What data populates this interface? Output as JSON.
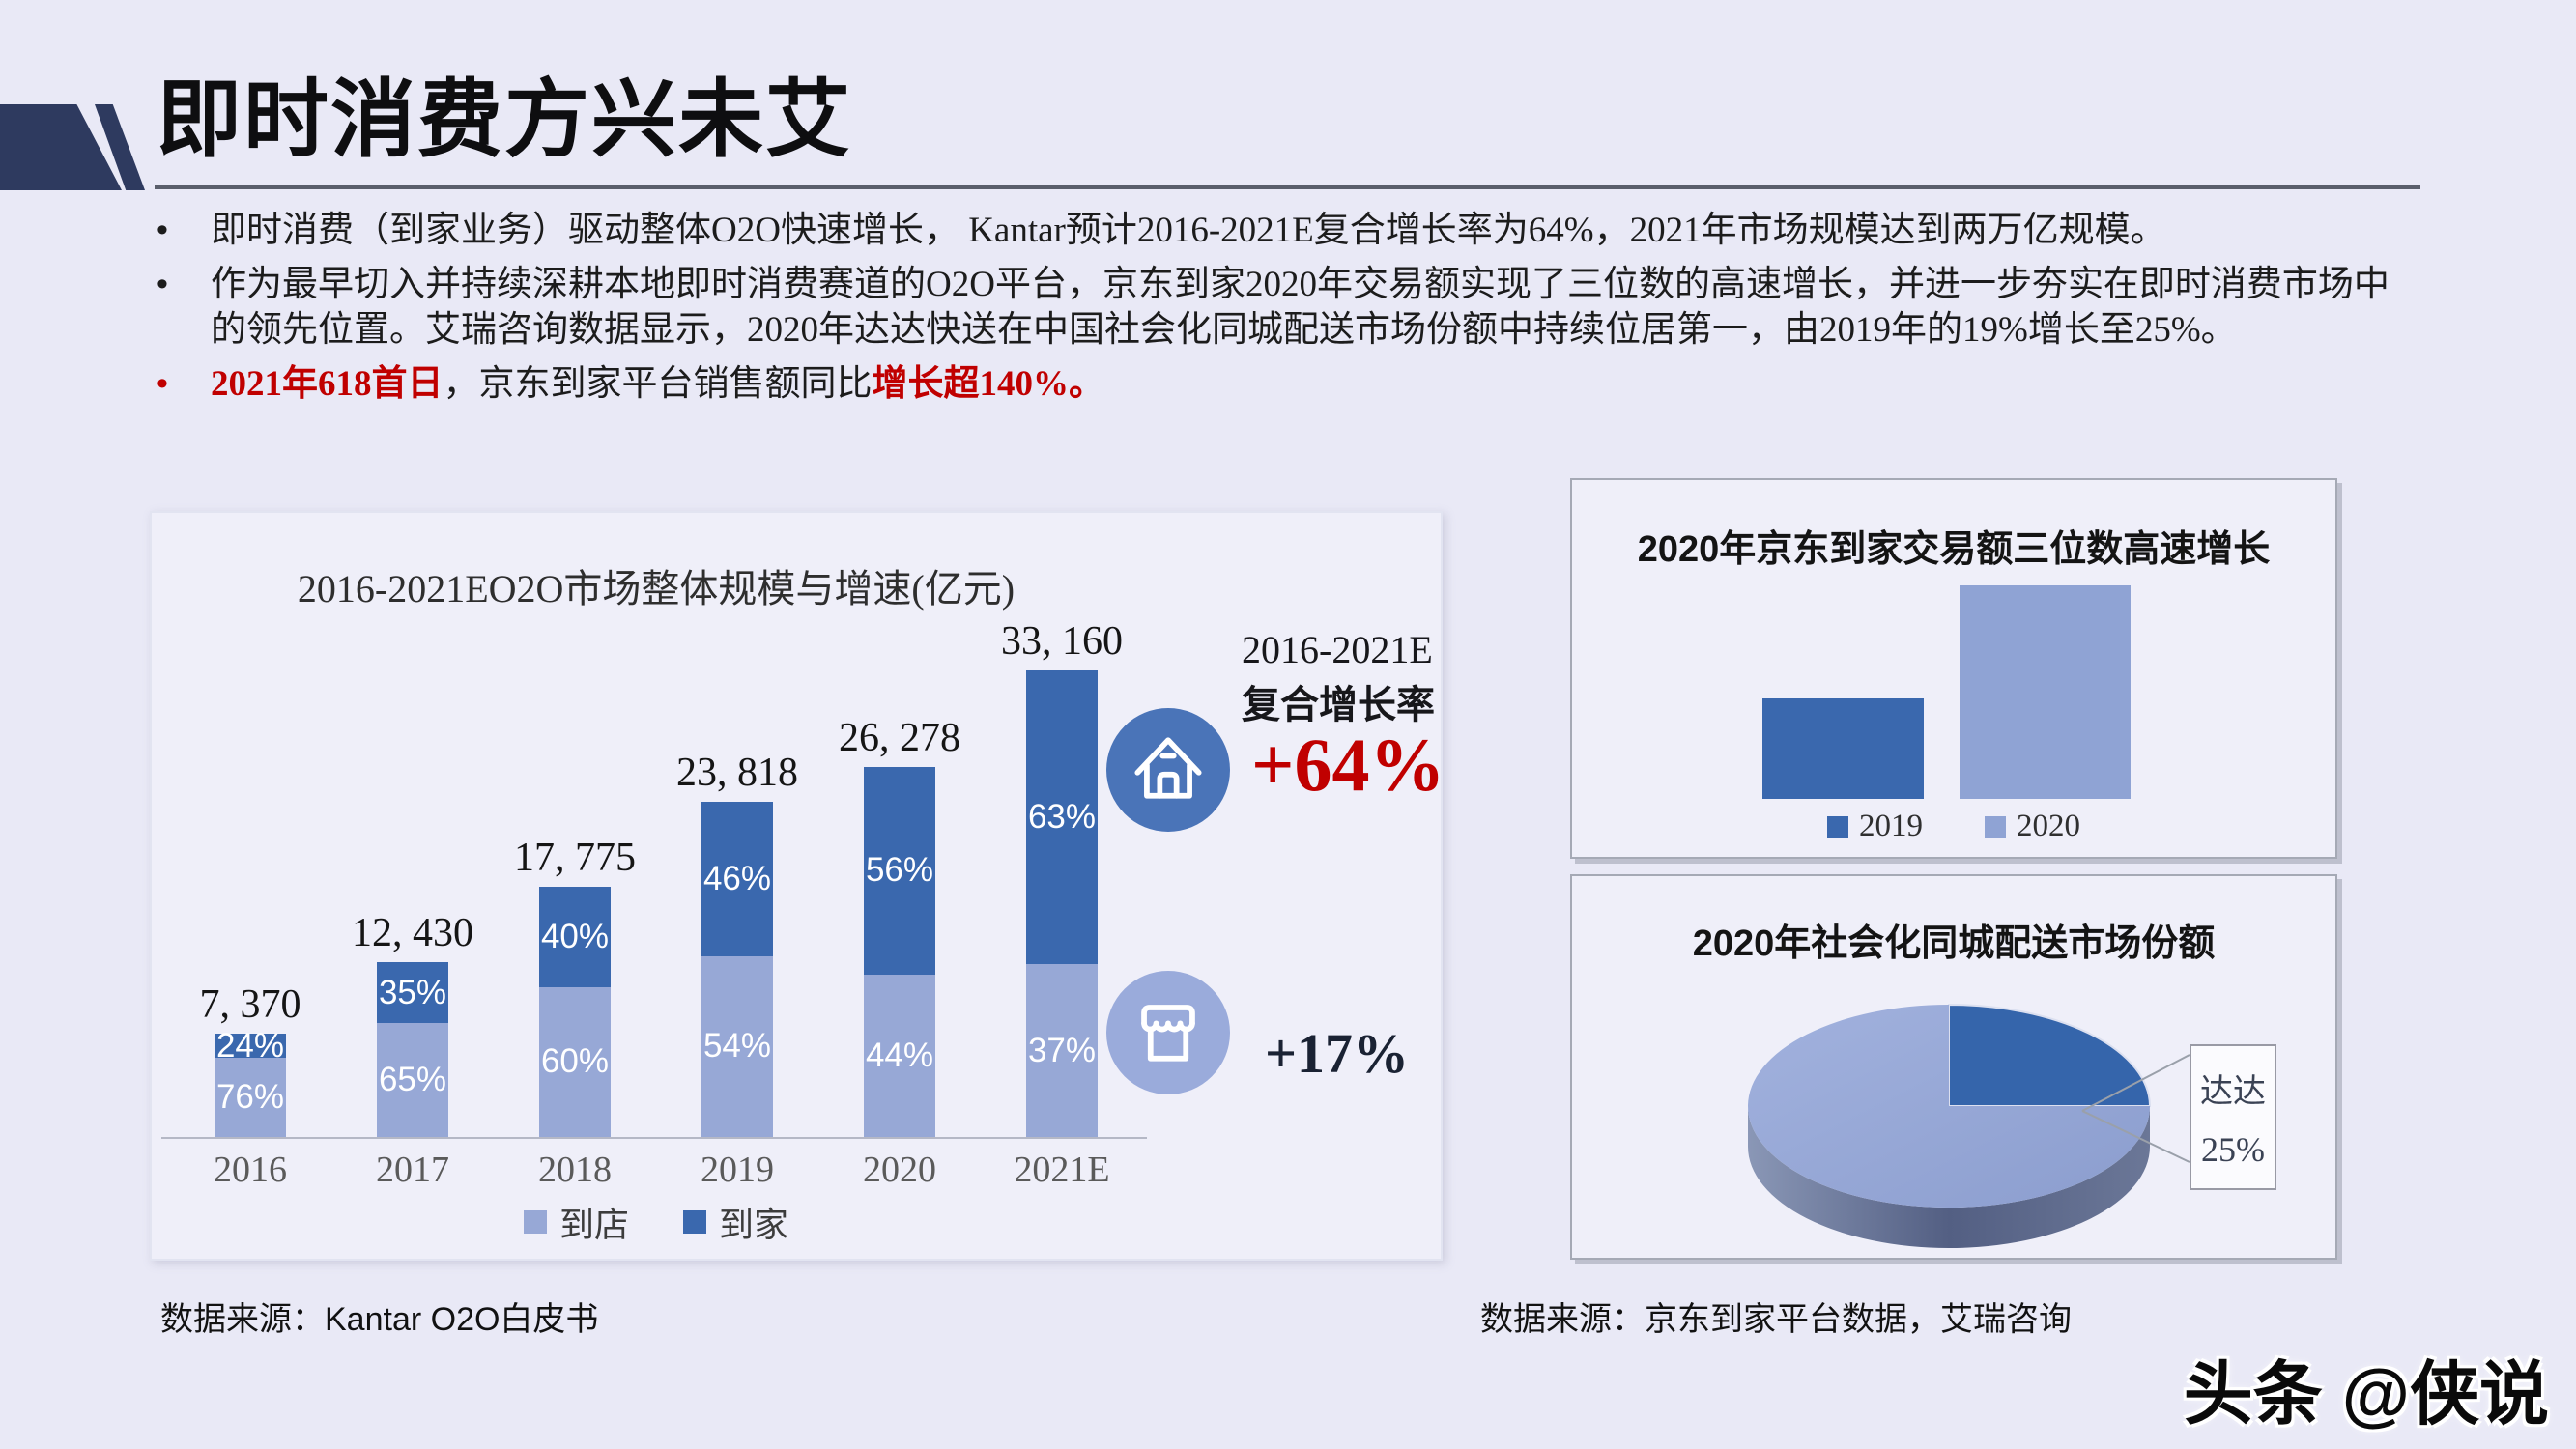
{
  "header": {
    "title": "即时消费方兴未艾"
  },
  "bullets": [
    {
      "marker": "•",
      "marker_color": "#1C1C1C",
      "segments": [
        {
          "t": "即时消费（到家业务）驱动整体O2O快速增长， Kantar预计2016-2021E复合增长率为64%，2021年市场规模达到两万亿规模。",
          "color": "#1C1C1C",
          "bold": false
        }
      ]
    },
    {
      "marker": "•",
      "marker_color": "#1C1C1C",
      "segments": [
        {
          "t": "作为最早切入并持续深耕本地即时消费赛道的O2O平台，京东到家2020年交易额实现了三位数的高速增长，并进一步夯实在即时消费市场中的领先位置。艾瑞咨询数据显示，2020年达达快送在中国社会化同城配送市场份额中持续位居第一，由2019年的19%增长至25%。",
          "color": "#1C1C1C",
          "bold": false
        }
      ]
    },
    {
      "marker": "•",
      "marker_color": "#C00000",
      "segments": [
        {
          "t": "2021年618首日",
          "color": "#C00000",
          "bold": true
        },
        {
          "t": "，京东到家平台销售额同比",
          "color": "#1C1C1C",
          "bold": false
        },
        {
          "t": "增长超140%。",
          "color": "#C00000",
          "bold": true
        }
      ]
    }
  ],
  "chart_data": [
    {
      "name": "o2o-market-size",
      "type": "bar",
      "stacked": true,
      "title": "2016-2021EO2O市场整体规模与增速(亿元)",
      "categories": [
        "2016",
        "2017",
        "2018",
        "2019",
        "2020",
        "2021E"
      ],
      "totals": [
        7370,
        12430,
        17775,
        23818,
        26278,
        33160
      ],
      "total_labels": [
        "7, 370",
        "12, 430",
        "17, 775",
        "23, 818",
        "26, 278",
        "33, 160"
      ],
      "series": [
        {
          "name": "到店",
          "color": "#97A8D6",
          "pct": [
            76,
            65,
            60,
            54,
            44,
            37
          ]
        },
        {
          "name": "到家",
          "color": "#3A68AE",
          "pct": [
            24,
            35,
            40,
            46,
            56,
            63
          ]
        }
      ],
      "ymax": 33160,
      "unit": "亿元",
      "legend_position": "bottom"
    },
    {
      "name": "jddj-gmv-growth",
      "type": "bar",
      "title": "2020年京东到家交易额三位数高速增长",
      "categories": [
        "2019",
        "2020"
      ],
      "relative_heights": [
        0.47,
        1.0
      ],
      "colors": [
        "#3A68AE",
        "#8FA3D4"
      ],
      "legend_position": "bottom"
    },
    {
      "name": "tongcheng-delivery-share",
      "type": "pie",
      "title": "2020年社会化同城配送市场份额",
      "start_angle_deg": -90,
      "slices": [
        {
          "label": "达达",
          "pct": 25,
          "color": "#3565AB"
        },
        {
          "label": "",
          "pct": 75,
          "color": "#97A8D6"
        }
      ],
      "callout": {
        "line1": "达达",
        "line2": "25%"
      }
    }
  ],
  "cagr": {
    "range_label": "2016-2021E",
    "metric_label": "复合增长率",
    "home_growth": "+64%",
    "store_growth": "+17%",
    "home_color": "#C00000",
    "store_color": "#1A2233"
  },
  "icons": {
    "home": "home-icon",
    "store": "storefront-icon"
  },
  "sources": {
    "left": "数据来源：Kantar O2O白皮书",
    "right": "数据来源：京东到家平台数据，艾瑞咨询"
  },
  "watermark": "头条 @侠说",
  "colors": {
    "background": "#E9E9F6",
    "deco_navy": "#2E3A5F",
    "accent_red": "#C00000",
    "bar_dark": "#3A68AE",
    "bar_light": "#97A8D6"
  }
}
